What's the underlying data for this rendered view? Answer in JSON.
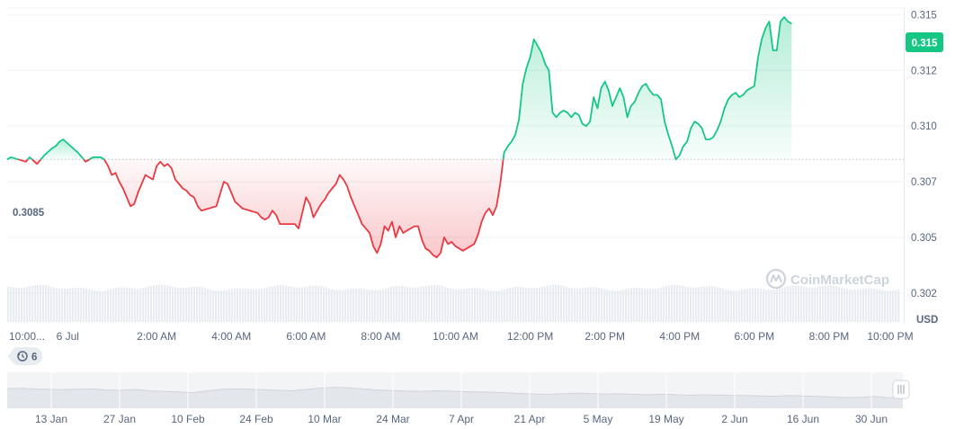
{
  "chart_data": {
    "type": "area",
    "currency": "USD",
    "reference_value": 0.3085,
    "reference_label": "0.3085",
    "current_value_label": "0.315",
    "ylim": [
      0.3012,
      0.3153
    ],
    "y_ticks": [
      {
        "value": 0.315,
        "label": "0.315"
      },
      {
        "value": 0.3125,
        "label": "0.312"
      },
      {
        "value": 0.31,
        "label": "0.310"
      },
      {
        "value": 0.3075,
        "label": "0.307"
      },
      {
        "value": 0.305,
        "label": "0.305"
      },
      {
        "value": 0.3025,
        "label": "0.302"
      }
    ],
    "x_ticks": [
      "10:00...",
      "6 Jul",
      "2:00 AM",
      "4:00 AM",
      "6:00 AM",
      "8:00 AM",
      "10:00 AM",
      "12:00 PM",
      "2:00 PM",
      "4:00 PM",
      "6:00 PM",
      "8:00 PM",
      "10:00 PM"
    ],
    "x_hours": [
      0,
      1.62,
      4,
      6,
      8,
      10,
      12,
      14,
      16,
      18,
      20,
      22,
      24
    ],
    "x_range_hours": [
      0,
      24.0
    ],
    "colors": {
      "up": "#16c784",
      "down": "#ea3943",
      "up_fill": "#16c784",
      "down_fill": "#ea3943"
    },
    "series": [
      {
        "values": [
          [
            0.0,
            0.3085
          ],
          [
            0.1,
            0.3086
          ],
          [
            0.3,
            0.3085
          ],
          [
            0.5,
            0.3084
          ],
          [
            0.6,
            0.3086
          ],
          [
            0.8,
            0.3083
          ],
          [
            1.0,
            0.3087
          ],
          [
            1.2,
            0.309
          ],
          [
            1.3,
            0.3091
          ],
          [
            1.4,
            0.3093
          ],
          [
            1.5,
            0.3094
          ],
          [
            1.7,
            0.3091
          ],
          [
            1.9,
            0.3088
          ],
          [
            2.1,
            0.3084
          ],
          [
            2.3,
            0.3086
          ],
          [
            2.4,
            0.3086
          ],
          [
            2.5,
            0.3086
          ],
          [
            2.6,
            0.3085
          ],
          [
            2.7,
            0.3082
          ],
          [
            2.8,
            0.3078
          ],
          [
            2.9,
            0.3079
          ],
          [
            3.0,
            0.3075
          ],
          [
            3.1,
            0.3072
          ],
          [
            3.2,
            0.3068
          ],
          [
            3.3,
            0.3064
          ],
          [
            3.4,
            0.3065
          ],
          [
            3.5,
            0.307
          ],
          [
            3.6,
            0.3074
          ],
          [
            3.7,
            0.3078
          ],
          [
            3.8,
            0.3077
          ],
          [
            3.9,
            0.3076
          ],
          [
            4.0,
            0.3082
          ],
          [
            4.1,
            0.3084
          ],
          [
            4.2,
            0.3082
          ],
          [
            4.3,
            0.3083
          ],
          [
            4.4,
            0.3081
          ],
          [
            4.5,
            0.3076
          ],
          [
            4.6,
            0.3074
          ],
          [
            4.7,
            0.3072
          ],
          [
            4.8,
            0.3071
          ],
          [
            4.9,
            0.3069
          ],
          [
            5.0,
            0.3068
          ],
          [
            5.1,
            0.3064
          ],
          [
            5.2,
            0.3062
          ],
          [
            5.4,
            0.3063
          ],
          [
            5.6,
            0.3064
          ],
          [
            5.8,
            0.3075
          ],
          [
            5.9,
            0.3074
          ],
          [
            6.0,
            0.307
          ],
          [
            6.1,
            0.3066
          ],
          [
            6.3,
            0.3063
          ],
          [
            6.5,
            0.3062
          ],
          [
            6.7,
            0.3061
          ],
          [
            6.8,
            0.3059
          ],
          [
            6.9,
            0.3058
          ],
          [
            7.0,
            0.3059
          ],
          [
            7.1,
            0.3062
          ],
          [
            7.2,
            0.306
          ],
          [
            7.3,
            0.3056
          ],
          [
            7.5,
            0.3056
          ],
          [
            7.7,
            0.3056
          ],
          [
            7.8,
            0.3054
          ],
          [
            8.0,
            0.3068
          ],
          [
            8.1,
            0.3065
          ],
          [
            8.2,
            0.3059
          ],
          [
            8.3,
            0.3062
          ],
          [
            8.4,
            0.3065
          ],
          [
            8.5,
            0.3067
          ],
          [
            8.6,
            0.307
          ],
          [
            8.7,
            0.3072
          ],
          [
            8.8,
            0.3074
          ],
          [
            8.9,
            0.3078
          ],
          [
            9.0,
            0.3076
          ],
          [
            9.1,
            0.3073
          ],
          [
            9.2,
            0.3068
          ],
          [
            9.3,
            0.3064
          ],
          [
            9.4,
            0.306
          ],
          [
            9.5,
            0.3056
          ],
          [
            9.6,
            0.3054
          ],
          [
            9.7,
            0.3052
          ],
          [
            9.8,
            0.3046
          ],
          [
            9.9,
            0.3043
          ],
          [
            10.0,
            0.3047
          ],
          [
            10.1,
            0.3055
          ],
          [
            10.2,
            0.3053
          ],
          [
            10.3,
            0.3057
          ],
          [
            10.4,
            0.305
          ],
          [
            10.5,
            0.3055
          ],
          [
            10.6,
            0.3052
          ],
          [
            10.7,
            0.3053
          ],
          [
            10.8,
            0.3054
          ],
          [
            10.9,
            0.3055
          ],
          [
            11.0,
            0.3055
          ],
          [
            11.1,
            0.3049
          ],
          [
            11.2,
            0.3045
          ],
          [
            11.3,
            0.3044
          ],
          [
            11.4,
            0.3042
          ],
          [
            11.5,
            0.3041
          ],
          [
            11.6,
            0.3043
          ],
          [
            11.7,
            0.305
          ],
          [
            11.8,
            0.3047
          ],
          [
            11.9,
            0.3048
          ],
          [
            12.0,
            0.3046
          ],
          [
            12.1,
            0.3045
          ],
          [
            12.2,
            0.3044
          ],
          [
            12.3,
            0.3045
          ],
          [
            12.4,
            0.3046
          ],
          [
            12.5,
            0.3047
          ],
          [
            12.6,
            0.3051
          ],
          [
            12.7,
            0.3057
          ],
          [
            12.8,
            0.3061
          ],
          [
            12.9,
            0.3063
          ],
          [
            13.0,
            0.306
          ],
          [
            13.1,
            0.3064
          ],
          [
            13.2,
            0.3074
          ],
          [
            13.3,
            0.3088
          ],
          [
            13.4,
            0.3091
          ],
          [
            13.5,
            0.3093
          ],
          [
            13.6,
            0.3096
          ],
          [
            13.7,
            0.3103
          ],
          [
            13.8,
            0.3119
          ],
          [
            13.9,
            0.3126
          ],
          [
            14.0,
            0.3131
          ],
          [
            14.1,
            0.3139
          ],
          [
            14.2,
            0.3136
          ],
          [
            14.3,
            0.3133
          ],
          [
            14.4,
            0.3128
          ],
          [
            14.5,
            0.3125
          ],
          [
            14.6,
            0.3106
          ],
          [
            14.7,
            0.3104
          ],
          [
            14.8,
            0.3106
          ],
          [
            14.9,
            0.3107
          ],
          [
            15.0,
            0.3106
          ],
          [
            15.1,
            0.3104
          ],
          [
            15.2,
            0.3106
          ],
          [
            15.3,
            0.3105
          ],
          [
            15.4,
            0.3101
          ],
          [
            15.5,
            0.31
          ],
          [
            15.6,
            0.3102
          ],
          [
            15.7,
            0.3113
          ],
          [
            15.8,
            0.3108
          ],
          [
            15.9,
            0.3117
          ],
          [
            16.0,
            0.312
          ],
          [
            16.1,
            0.3116
          ],
          [
            16.2,
            0.3109
          ],
          [
            16.3,
            0.3113
          ],
          [
            16.4,
            0.3117
          ],
          [
            16.5,
            0.3113
          ],
          [
            16.6,
            0.3104
          ],
          [
            16.7,
            0.3109
          ],
          [
            16.8,
            0.3111
          ],
          [
            16.9,
            0.3115
          ],
          [
            17.0,
            0.3118
          ],
          [
            17.1,
            0.3119
          ],
          [
            17.2,
            0.3116
          ],
          [
            17.3,
            0.3114
          ],
          [
            17.4,
            0.3114
          ],
          [
            17.5,
            0.3112
          ],
          [
            17.6,
            0.3102
          ],
          [
            17.7,
            0.3096
          ],
          [
            17.8,
            0.3091
          ],
          [
            17.9,
            0.3085
          ],
          [
            18.0,
            0.3087
          ],
          [
            18.1,
            0.3091
          ],
          [
            18.2,
            0.3093
          ],
          [
            18.3,
            0.3099
          ],
          [
            18.4,
            0.3102
          ],
          [
            18.5,
            0.3101
          ],
          [
            18.6,
            0.3099
          ],
          [
            18.7,
            0.3094
          ],
          [
            18.8,
            0.3094
          ],
          [
            18.9,
            0.3095
          ],
          [
            19.0,
            0.3098
          ],
          [
            19.1,
            0.3102
          ],
          [
            19.2,
            0.3108
          ],
          [
            19.3,
            0.3112
          ],
          [
            19.4,
            0.3114
          ],
          [
            19.5,
            0.3115
          ],
          [
            19.6,
            0.3113
          ],
          [
            19.7,
            0.3114
          ],
          [
            19.8,
            0.3116
          ],
          [
            19.9,
            0.3117
          ],
          [
            20.0,
            0.3118
          ],
          [
            20.1,
            0.3131
          ],
          [
            20.2,
            0.3139
          ],
          [
            20.3,
            0.3144
          ],
          [
            20.4,
            0.3147
          ],
          [
            20.5,
            0.3134
          ],
          [
            20.6,
            0.3134
          ],
          [
            20.7,
            0.3147
          ],
          [
            20.8,
            0.3149
          ],
          [
            20.9,
            0.3147
          ],
          [
            21.0,
            0.3146
          ]
        ]
      }
    ],
    "legend_on_chart": false
  },
  "price_labels": {
    "reference": "0.3085",
    "current": "0.315",
    "currency": "USD"
  },
  "annotations": {
    "events_count": "6",
    "watermark": "CoinMarketCap"
  },
  "range_navigator": {
    "ticks": [
      "13 Jan",
      "27 Jan",
      "10 Feb",
      "24 Feb",
      "10 Mar",
      "24 Mar",
      "7 Apr",
      "21 Apr",
      "5 May",
      "19 May",
      "2 Jun",
      "16 Jun",
      "30 Jun"
    ],
    "mini_series": [
      0.53,
      0.54,
      0.52,
      0.5,
      0.49,
      0.51,
      0.52,
      0.48,
      0.47,
      0.5,
      0.45,
      0.43,
      0.41,
      0.38,
      0.44,
      0.5,
      0.52,
      0.51,
      0.49,
      0.47,
      0.45,
      0.5,
      0.55,
      0.58,
      0.56,
      0.52,
      0.48,
      0.46,
      0.44,
      0.43,
      0.45,
      0.44,
      0.42,
      0.41,
      0.4,
      0.38,
      0.35,
      0.33,
      0.32,
      0.34,
      0.36,
      0.35,
      0.33,
      0.34,
      0.32,
      0.3,
      0.32,
      0.31,
      0.28,
      0.3,
      0.29,
      0.28,
      0.27,
      0.26,
      0.25,
      0.27,
      0.26,
      0.24,
      0.22,
      0.2,
      0.21,
      0.24,
      0.19,
      0.2
    ]
  }
}
